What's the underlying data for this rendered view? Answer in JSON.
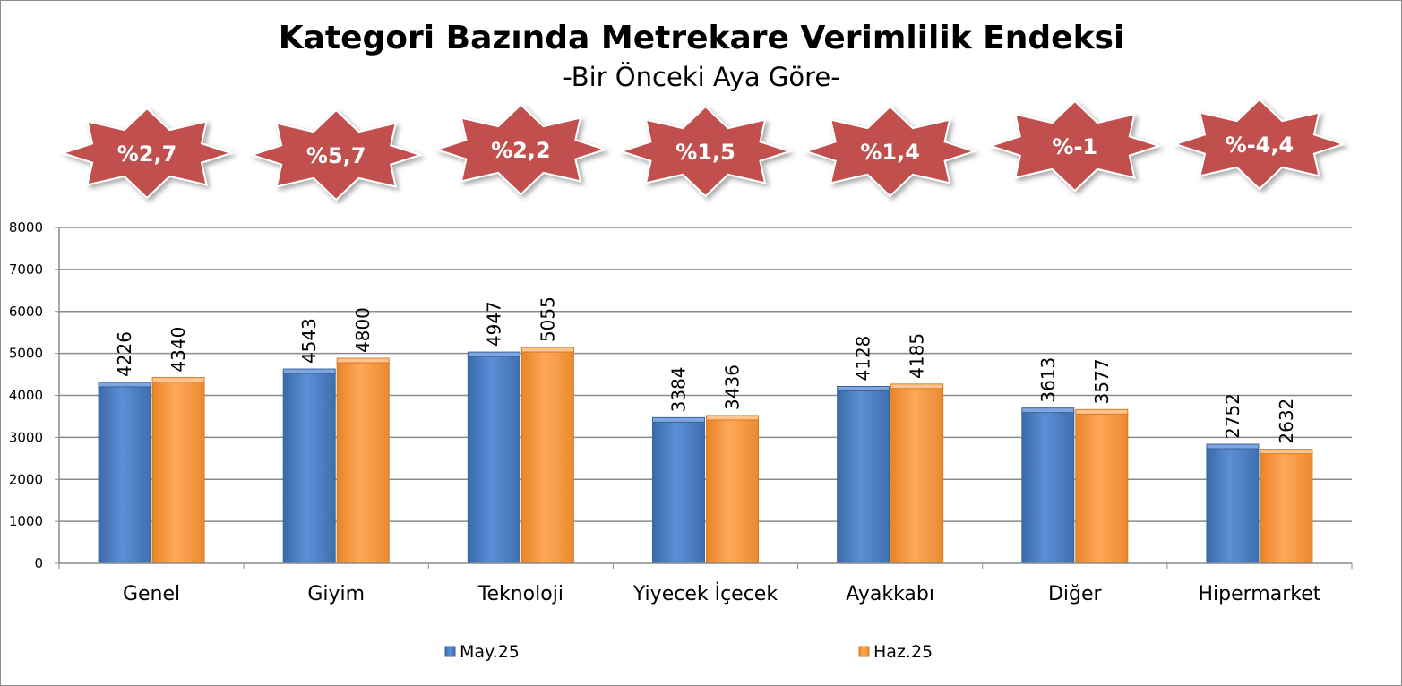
{
  "chart_data": {
    "type": "bar",
    "title": "Kategori Bazında Metrekare Verimlilik Endeksi",
    "subtitle": "-Bir Önceki Aya Göre-",
    "categories": [
      "Genel",
      "Giyim",
      "Teknoloji",
      "Yiyecek İçecek",
      "Ayakkabı",
      "Diğer",
      "Hipermarket"
    ],
    "series": [
      {
        "name": "May.25",
        "values": [
          4226,
          4543,
          4947,
          3384,
          4128,
          3613,
          2752
        ],
        "color": "#4f81bd"
      },
      {
        "name": "Haz.25",
        "values": [
          4340,
          4800,
          5055,
          3436,
          4185,
          3577,
          2632
        ],
        "color": "#f79646"
      }
    ],
    "changes": [
      "%2,7",
      "%5,7",
      "%2,2",
      "%1,5",
      "%1,4",
      "%-1",
      "%-4,4"
    ],
    "change_badge_color": "#c0504d",
    "ylim": [
      0,
      8000
    ],
    "yticks": [
      0,
      1000,
      2000,
      3000,
      4000,
      5000,
      6000,
      7000,
      8000
    ],
    "grid": true,
    "legend_position": "bottom",
    "xlabel": "",
    "ylabel": ""
  }
}
